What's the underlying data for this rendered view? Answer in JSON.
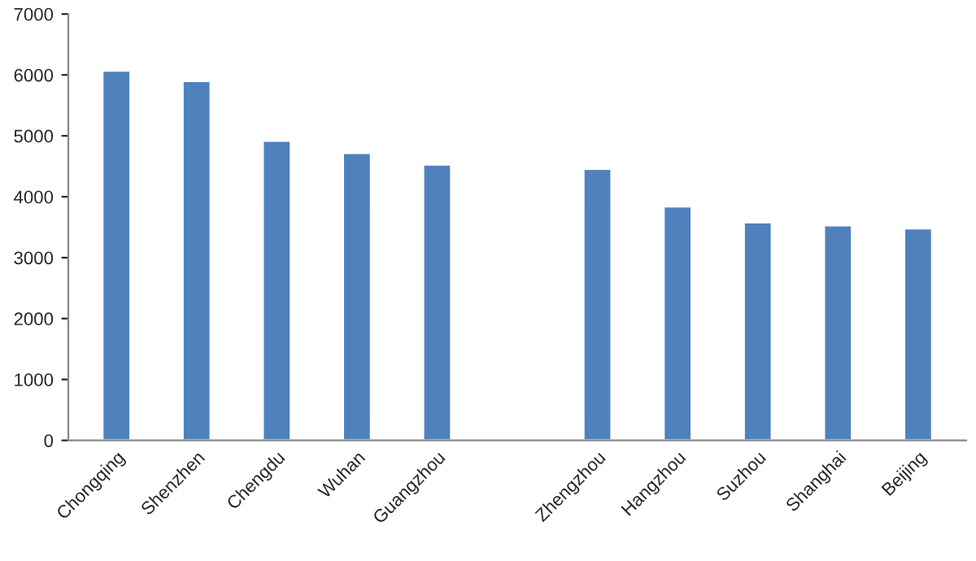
{
  "chart_data": {
    "type": "bar",
    "categories": [
      "Chongqing",
      "Shenzhen",
      "Chengdu",
      "Wuhan",
      "Guangzhou",
      null,
      "Zhengzhou",
      "Hangzhou",
      "Suzhou",
      "Shanghai",
      "Beijing"
    ],
    "values": [
      6070,
      5900,
      4920,
      4720,
      4530,
      null,
      4460,
      3840,
      3580,
      3530,
      3480
    ],
    "color": "#4f81bd",
    "ylim": [
      0,
      7000
    ],
    "yticks": [
      0,
      1000,
      2000,
      3000,
      4000,
      5000,
      6000,
      7000
    ],
    "grid": false,
    "legend": false
  }
}
